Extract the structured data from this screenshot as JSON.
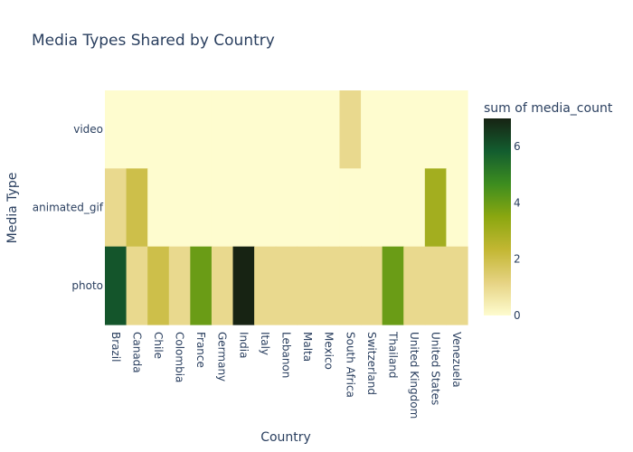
{
  "chart_data": {
    "type": "heatmap",
    "title": "Media Types Shared by Country",
    "xlabel": "Country",
    "ylabel": "Media Type",
    "x": [
      "Brazil",
      "Canada",
      "Chile",
      "Colombia",
      "France",
      "Germany",
      "India",
      "Italy",
      "Lebanon",
      "Malta",
      "Mexico",
      "South Africa",
      "Switzerland",
      "Thailand",
      "United Kingdom",
      "United States",
      "Venezuela"
    ],
    "y": [
      "video",
      "animated_gif",
      "photo"
    ],
    "z": [
      [
        0,
        0,
        0,
        0,
        0,
        0,
        0,
        0,
        0,
        0,
        0,
        1,
        0,
        0,
        0,
        0,
        0
      ],
      [
        1,
        2,
        0,
        0,
        0,
        0,
        0,
        0,
        0,
        0,
        0,
        0,
        0,
        0,
        0,
        3,
        0
      ],
      [
        6,
        1,
        2,
        1,
        4,
        1,
        7,
        1,
        1,
        1,
        1,
        1,
        1,
        4,
        1,
        1,
        1
      ]
    ],
    "colorbar": {
      "title": "sum of media_count",
      "range": [
        0,
        7
      ],
      "ticks": [
        0,
        2,
        4,
        6
      ],
      "colors": [
        "#fefccf",
        "#e6d383",
        "#c3b733",
        "#8ba710",
        "#3d8d1f",
        "#135d2f",
        "#172313"
      ]
    }
  }
}
